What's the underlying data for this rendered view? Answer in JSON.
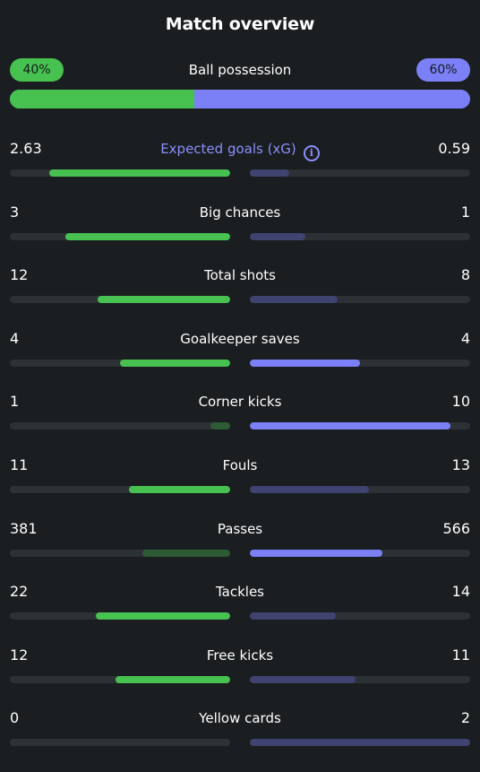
{
  "title": "Match overview",
  "possession": {
    "label": "Ball possession",
    "home": "40%",
    "away": "60%",
    "home_fraction": 0.4
  },
  "colors": {
    "home": "#47c14f",
    "away": "#7b80f7",
    "track": "#2c3135"
  },
  "stats": [
    {
      "label": "Expected goals (xG)",
      "home": "2.63",
      "away": "0.59",
      "home_fill": 0.82,
      "away_fill": 0.18,
      "leader": "home",
      "info_icon": true
    },
    {
      "label": "Big chances",
      "home": "3",
      "away": "1",
      "home_fill": 0.75,
      "away_fill": 0.25,
      "leader": "home"
    },
    {
      "label": "Total shots",
      "home": "12",
      "away": "8",
      "home_fill": 0.6,
      "away_fill": 0.4,
      "leader": "home"
    },
    {
      "label": "Goalkeeper saves",
      "home": "4",
      "away": "4",
      "home_fill": 0.5,
      "away_fill": 0.5,
      "leader": "both"
    },
    {
      "label": "Corner kicks",
      "home": "1",
      "away": "10",
      "home_fill": 0.09,
      "away_fill": 0.91,
      "leader": "away"
    },
    {
      "label": "Fouls",
      "home": "11",
      "away": "13",
      "home_fill": 0.46,
      "away_fill": 0.54,
      "leader": "home"
    },
    {
      "label": "Passes",
      "home": "381",
      "away": "566",
      "home_fill": 0.4,
      "away_fill": 0.6,
      "leader": "away"
    },
    {
      "label": "Tackles",
      "home": "22",
      "away": "14",
      "home_fill": 0.61,
      "away_fill": 0.39,
      "leader": "home"
    },
    {
      "label": "Free kicks",
      "home": "12",
      "away": "11",
      "home_fill": 0.52,
      "away_fill": 0.48,
      "leader": "home"
    },
    {
      "label": "Yellow cards",
      "home": "0",
      "away": "2",
      "home_fill": 0.0,
      "away_fill": 1.0,
      "leader": "home"
    }
  ]
}
